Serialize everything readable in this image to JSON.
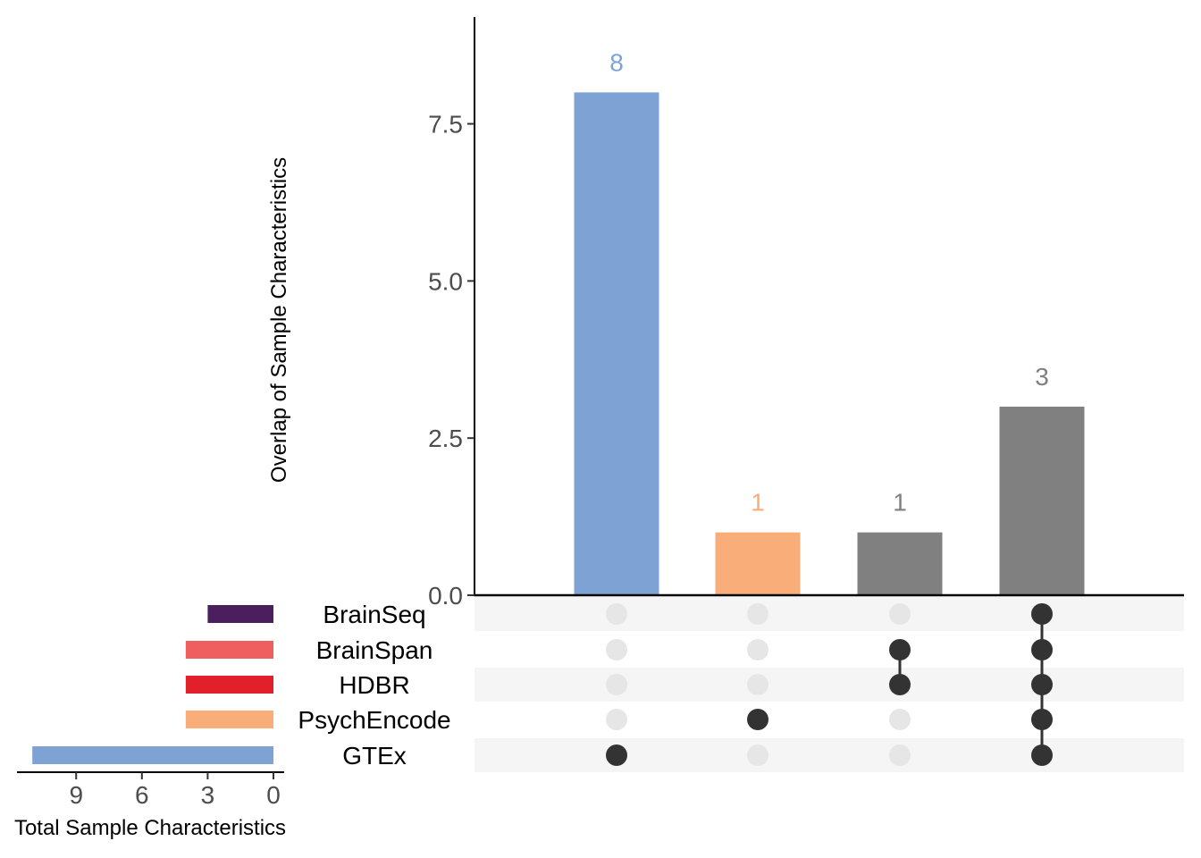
{
  "chart_data": {
    "type": "bar",
    "intersections": {
      "categories": [
        "GTEx",
        "PsychEncode",
        "BrainSpan & HDBR",
        "BrainSeq & BrainSpan & HDBR & PsychEncode & GTEx"
      ],
      "values": [
        8,
        1,
        1,
        3
      ],
      "colors": [
        "#7fa2d4",
        "#f9ad79",
        "#808080",
        "#808080"
      ],
      "members": [
        [
          "GTEx"
        ],
        [
          "PsychEncode"
        ],
        [
          "BrainSpan",
          "HDBR"
        ],
        [
          "BrainSeq",
          "BrainSpan",
          "HDBR",
          "PsychEncode",
          "GTEx"
        ]
      ],
      "ylabel": "Overlap of Sample Characteristics",
      "ylim": [
        0,
        9.2
      ],
      "yticks": [
        "0.0",
        "2.5",
        "5.0",
        "7.5"
      ],
      "ytick_values": [
        0,
        2.5,
        5,
        7.5
      ]
    },
    "set_sizes": {
      "sets": [
        "BrainSeq",
        "BrainSpan",
        "HDBR",
        "PsychEncode",
        "GTEx"
      ],
      "values": [
        3,
        4,
        4,
        4,
        11
      ],
      "colors": [
        "#4b1f5e",
        "#f05f5f",
        "#e1202b",
        "#f9ad79",
        "#7fa2d4"
      ],
      "xlabel": "Total Sample Characteristics",
      "xlim": [
        0,
        11.7
      ],
      "xticks": [
        "9",
        "6",
        "3",
        "0"
      ],
      "xtick_values": [
        9,
        6,
        3,
        0
      ]
    },
    "matrix": {
      "dot_on_color": "#333333",
      "dot_off_color": "#e6e6e6",
      "stripe_color": "#f5f5f5"
    },
    "grid": false,
    "legend": "none"
  }
}
